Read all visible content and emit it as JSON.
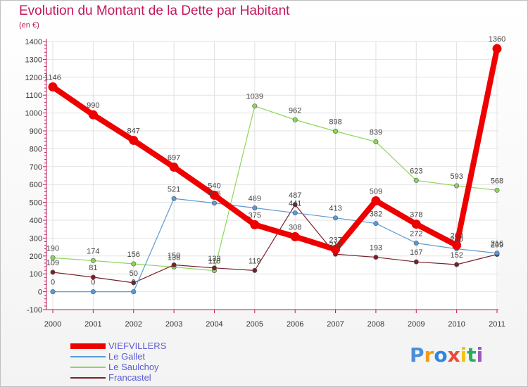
{
  "chart_data": {
    "type": "line",
    "title": "Evolution du Montant de la Dette par Habitant",
    "subtitle": "(en €)",
    "x": [
      "2000",
      "2001",
      "2002",
      "2003",
      "2004",
      "2005",
      "2006",
      "2007",
      "2008",
      "2009",
      "2010",
      "2011"
    ],
    "ylim": [
      -100,
      1400
    ],
    "yticks": [
      "-100",
      "0",
      "100",
      "200",
      "300",
      "400",
      "500",
      "600",
      "700",
      "800",
      "900",
      "1000",
      "1100",
      "1200",
      "1300",
      "1400"
    ],
    "grid": true,
    "legend_position": "bottom-left",
    "series": [
      {
        "name": "VIEFVILLERS",
        "color": "#ee0000",
        "values": [
          1146,
          990,
          847,
          697,
          540,
          375,
          308,
          237,
          509,
          378,
          260,
          1360
        ]
      },
      {
        "name": "Le Gallet",
        "color": "#5b9bd5",
        "values": [
          0,
          0,
          0,
          521,
          496,
          469,
          441,
          413,
          382,
          272,
          240,
          216
        ]
      },
      {
        "name": "Le Saulchoy",
        "color": "#8ed65b",
        "values": [
          190,
          174,
          156,
          138,
          118,
          1039,
          962,
          898,
          839,
          623,
          593,
          568
        ]
      },
      {
        "name": "Francastel",
        "color": "#7a1f2b",
        "values": [
          109,
          81,
          50,
          150,
          133,
          119,
          487,
          210,
          193,
          167,
          152,
          209
        ]
      }
    ]
  },
  "brand": {
    "letters": [
      "P",
      "r",
      "o",
      "x",
      "i",
      "t",
      "i"
    ],
    "colors": [
      "#4a90d9",
      "#f39c12",
      "#2e86de",
      "#e74c3c",
      "#f1c40f",
      "#27ae60",
      "#9b59b6"
    ]
  }
}
